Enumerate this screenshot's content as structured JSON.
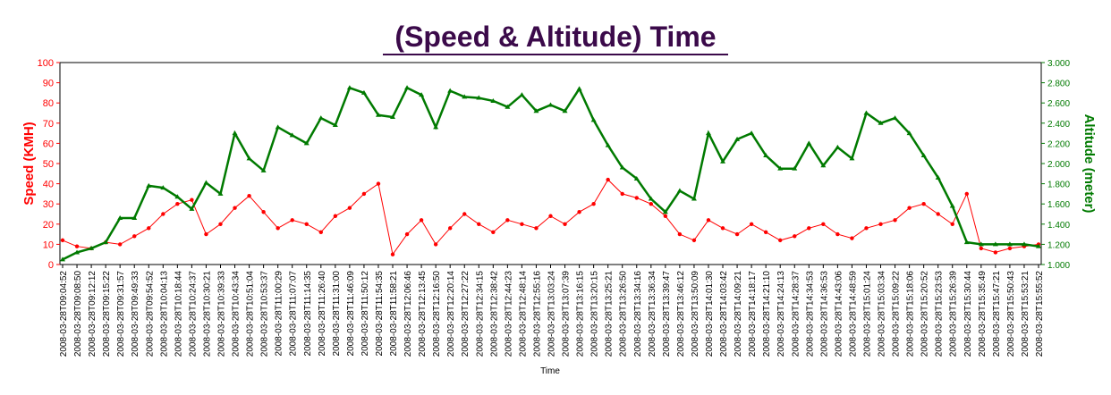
{
  "chart_data": {
    "type": "line",
    "title": "(Speed & Altitude) Time",
    "xlabel": "Time",
    "ylabel_left": "Speed (KMH)",
    "ylabel_right": "Altitude (meter)",
    "y_left_lim": [
      0,
      100
    ],
    "y_right_lim": [
      1.0,
      3.0
    ],
    "y_left_ticks": [
      "0",
      "10",
      "20",
      "30",
      "40",
      "50",
      "60",
      "70",
      "80",
      "90",
      "100"
    ],
    "y_right_ticks": [
      "1.000",
      "1.200",
      "1.400",
      "1.600",
      "1.800",
      "2.000",
      "2.200",
      "2.400",
      "2.600",
      "2.800",
      "3.000"
    ],
    "x_ticks": [
      "2008-03-28T09:04:52",
      "2008-03-28T09:08:50",
      "2008-03-28T09:12:12",
      "2008-03-28T09:15:22",
      "2008-03-28T09:31:57",
      "2008-03-28T09:49:33",
      "2008-03-28T09:54:52",
      "2008-03-28T10:04:13",
      "2008-03-28T10:18:44",
      "2008-03-28T10:24:37",
      "2008-03-28T10:30:21",
      "2008-03-28T10:39:33",
      "2008-03-28T10:43:34",
      "2008-03-28T10:51:04",
      "2008-03-28T10:53:37",
      "2008-03-28T11:00:29",
      "2008-03-28T11:07:07",
      "2008-03-28T11:14:35",
      "2008-03-28T11:26:40",
      "2008-03-28T11:31:00",
      "2008-03-28T11:46:09",
      "2008-03-28T11:50:12",
      "2008-03-28T11:54:35",
      "2008-03-28T11:58:21",
      "2008-03-28T12:06:46",
      "2008-03-28T12:13:45",
      "2008-03-28T12:16:50",
      "2008-03-28T12:20:14",
      "2008-03-28T12:27:22",
      "2008-03-28T12:34:15",
      "2008-03-28T12:38:42",
      "2008-03-28T12:44:23",
      "2008-03-28T12:48:14",
      "2008-03-28T12:55:16",
      "2008-03-28T13:03:24",
      "2008-03-28T13:07:39",
      "2008-03-28T13:16:15",
      "2008-03-28T13:20:15",
      "2008-03-28T13:25:21",
      "2008-03-28T13:26:50",
      "2008-03-28T13:34:16",
      "2008-03-28T13:36:34",
      "2008-03-28T13:39:47",
      "2008-03-28T13:46:12",
      "2008-03-28T13:50:09",
      "2008-03-28T14:01:30",
      "2008-03-28T14:03:42",
      "2008-03-28T14:09:21",
      "2008-03-28T14:18:17",
      "2008-03-28T14:21:10",
      "2008-03-28T14:24:13",
      "2008-03-28T14:28:37",
      "2008-03-28T14:34:53",
      "2008-03-28T14:36:53",
      "2008-03-28T14:43:06",
      "2008-03-28T14:48:59",
      "2008-03-28T15:01:24",
      "2008-03-28T15:03:34",
      "2008-03-28T15:09:22",
      "2008-03-28T15:18:06",
      "2008-03-28T15:20:52",
      "2008-03-28T15:23:53",
      "2008-03-28T15:26:39",
      "2008-03-28T15:30:44",
      "2008-03-28T15:35:49",
      "2008-03-28T15:47:21",
      "2008-03-28T15:50:43",
      "2008-03-28T15:53:21",
      "2008-03-28T15:55:52"
    ],
    "series": [
      {
        "name": "Speed (KMH)",
        "axis": "left",
        "color": "#ff0000",
        "x": [
          0,
          1,
          2,
          3,
          4,
          5,
          6,
          7,
          8,
          9,
          10,
          11,
          12,
          13,
          14,
          15,
          16,
          17,
          18,
          19,
          20,
          21,
          22,
          23,
          24,
          25,
          26,
          27,
          28,
          29,
          30,
          31,
          32,
          33,
          34,
          35,
          36,
          37,
          38,
          39,
          40,
          41,
          42,
          43,
          44,
          45,
          46,
          47,
          48,
          49,
          50,
          51,
          52,
          53,
          54,
          55,
          56,
          57,
          58,
          59,
          60,
          61,
          62,
          63,
          64,
          65,
          66,
          67,
          68
        ],
        "values": [
          12,
          9,
          8,
          11,
          10,
          14,
          18,
          25,
          30,
          32,
          15,
          20,
          28,
          34,
          26,
          18,
          22,
          20,
          16,
          24,
          28,
          35,
          40,
          5,
          15,
          22,
          10,
          18,
          25,
          20,
          16,
          22,
          20,
          18,
          24,
          20,
          26,
          30,
          42,
          35,
          33,
          30,
          24,
          15,
          12,
          22,
          18,
          15,
          20,
          16,
          12,
          14,
          18,
          20,
          15,
          13,
          18,
          20,
          22,
          28,
          30,
          25,
          20,
          35,
          8,
          6,
          8,
          9,
          10
        ]
      },
      {
        "name": "Altitude (meter)",
        "axis": "right",
        "color": "#007a00",
        "x": [
          0,
          1,
          2,
          3,
          4,
          5,
          6,
          7,
          8,
          9,
          10,
          11,
          12,
          13,
          14,
          15,
          16,
          17,
          18,
          19,
          20,
          21,
          22,
          23,
          24,
          25,
          26,
          27,
          28,
          29,
          30,
          31,
          32,
          33,
          34,
          35,
          36,
          37,
          38,
          39,
          40,
          41,
          42,
          43,
          44,
          45,
          46,
          47,
          48,
          49,
          50,
          51,
          52,
          53,
          54,
          55,
          56,
          57,
          58,
          59,
          60,
          61,
          62,
          63,
          64,
          65,
          66,
          67,
          68
        ],
        "values": [
          1.05,
          1.12,
          1.16,
          1.22,
          1.46,
          1.46,
          1.78,
          1.76,
          1.67,
          1.55,
          1.81,
          1.7,
          2.3,
          2.05,
          1.93,
          2.36,
          2.28,
          2.2,
          2.45,
          2.38,
          2.75,
          2.7,
          2.48,
          2.46,
          2.75,
          2.68,
          2.36,
          2.72,
          2.66,
          2.65,
          2.62,
          2.56,
          2.68,
          2.52,
          2.58,
          2.52,
          2.74,
          2.43,
          2.18,
          1.96,
          1.85,
          1.65,
          1.52,
          1.73,
          1.65,
          2.3,
          2.02,
          2.24,
          2.3,
          2.08,
          1.95,
          1.95,
          2.2,
          1.98,
          2.16,
          2.05,
          2.5,
          2.4,
          2.45,
          2.3,
          2.08,
          1.86,
          1.58,
          1.22,
          1.2,
          1.2,
          1.2,
          1.2,
          1.18
        ]
      }
    ]
  }
}
